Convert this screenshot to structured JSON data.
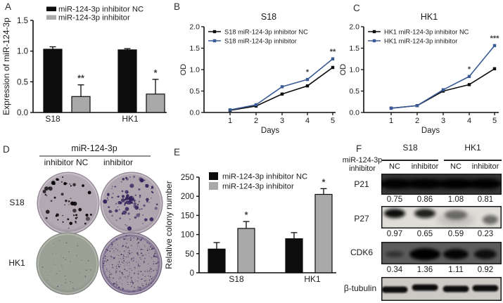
{
  "figure_bg": "#ffffff",
  "palette": {
    "nc_black": "#0d0d0d",
    "inhibitor_gray": "#a9a9a9",
    "inhibitor_blue": "#3a5a96",
    "text": "#1a1a1a",
    "significance": "#3f3f3f"
  },
  "panels": {
    "a": {
      "label": "A"
    },
    "b": {
      "label": "B"
    },
    "c": {
      "label": "C"
    },
    "d": {
      "label": "D",
      "group_title": "miR-124-3p",
      "col_labels": [
        "inhibitor NC",
        "inhibitor"
      ],
      "row_labels": [
        "S18",
        "HK1"
      ],
      "dishes": [
        {
          "id": "s18-nc",
          "bg": "#b3a9b3",
          "rim": "#cbc2ca",
          "edge": "#8d8390",
          "colony_color": "#33235led",
          "colony_color_fix": "#33235e",
          "colony_count": 52,
          "colony_size": "medium",
          "has_center_cluster": false
        },
        {
          "id": "s18-inhibitor",
          "bg": "#b0a6b0",
          "rim": "#c8bfc7",
          "edge": "#8d8390",
          "colony_color": "#30215a",
          "colony_count": 95,
          "colony_size": "medium",
          "has_center_cluster": true
        },
        {
          "id": "hk1-nc",
          "bg": "#9ba194",
          "rim": "#b5b9af",
          "edge": "#828880",
          "colony_color": "#565070",
          "colony_count": 45,
          "colony_size": "tiny",
          "has_center_cluster": false
        },
        {
          "id": "hk1-inhibitor",
          "bg": "#a39ba5",
          "rim": "#b7b0b8",
          "edge": "#6f5f80",
          "colony_color": "#43315f",
          "colony_count": 330,
          "colony_size": "tiny",
          "has_center_cluster": false,
          "purple_rim": true
        }
      ]
    },
    "e": {
      "label": "E"
    },
    "f": {
      "label": "F",
      "row_header_line1": "miR-124-3p",
      "row_header_line2": "inhibitor",
      "group_labels": [
        "S18",
        "HK1"
      ],
      "lane_labels": [
        "NC",
        "inhibitor",
        "NC",
        "inhibitor"
      ],
      "blots": [
        {
          "protein": "P21",
          "values": [
            "0.75",
            "0.86",
            "1.08",
            "0.81"
          ],
          "bg": "#3a3a3a",
          "band_color": "#040404",
          "band_opacity": [
            0.88,
            0.92,
            1,
            0.95
          ],
          "style": "smear"
        },
        {
          "protein": "P27",
          "values": [
            "0.97",
            "0.65",
            "0.59",
            "0.23"
          ],
          "bg": "#dfddd8",
          "band_color": "#0a0a0a",
          "band_opacity": [
            1,
            0.9,
            0.5,
            0.55
          ],
          "style": "spots-top"
        },
        {
          "protein": "CDK6",
          "values": [
            "0.34",
            "1.36",
            "1.11",
            "0.92"
          ],
          "bg": "#5c5c5c",
          "band_color": "#060606",
          "band_opacity": [
            0.45,
            1,
            0.95,
            0.85
          ],
          "style": "spots-mid"
        },
        {
          "protein": "β-tubulin",
          "values": [],
          "bg": "#cdcac5",
          "band_color": "#101010",
          "band_opacity": [
            1,
            1,
            1,
            1
          ],
          "style": "bands"
        }
      ]
    }
  },
  "chart_data": [
    {
      "panel": "A",
      "type": "bar",
      "title": "",
      "xlabel": "",
      "ylabel": "Expression of miR-124-3p",
      "categories": [
        "S18",
        "HK1"
      ],
      "series": [
        {
          "name": "miR-124-3p inhibitor NC",
          "color": "#0d0d0d",
          "values": [
            1.03,
            1.02
          ],
          "errors": [
            0.04,
            0.02
          ]
        },
        {
          "name": "miR-124-3p inhibitor",
          "color": "#a9a9a9",
          "values": [
            0.26,
            0.3
          ],
          "errors": [
            0.19,
            0.24
          ]
        }
      ],
      "significance": [
        {
          "category": "S18",
          "series": 1,
          "label": "**"
        },
        {
          "category": "HK1",
          "series": 1,
          "label": "*"
        }
      ],
      "ylim": [
        0,
        1.5
      ],
      "ytick_values": [
        0,
        0.5,
        1.0,
        1.5
      ],
      "ytick_labels": [
        "0.0",
        "0.5",
        "1.0",
        "1.5"
      ],
      "grid": false,
      "legend_position": "top-left"
    },
    {
      "panel": "B",
      "type": "line",
      "title": "S18",
      "xlabel": "Days",
      "ylabel": "OD",
      "x": [
        1,
        2,
        3,
        4,
        5
      ],
      "series": [
        {
          "name": "S18 miR-124-3p inhibitor NC",
          "color": "#0d0d0d",
          "values": [
            0.05,
            0.15,
            0.43,
            0.62,
            1.05
          ]
        },
        {
          "name": "S18 miR-124-3p inhibitor",
          "color": "#3a5a96",
          "values": [
            0.06,
            0.18,
            0.6,
            0.77,
            1.25
          ]
        }
      ],
      "significance": [
        {
          "x": 4,
          "label": "*"
        },
        {
          "x": 5,
          "label": "**"
        }
      ],
      "ylim": [
        0,
        2.0
      ],
      "ytick_values": [
        0,
        0.5,
        1.0,
        1.5,
        2.0
      ],
      "ytick_labels": [
        "0.0",
        "0.5",
        "1.0",
        "1.5",
        "2.0"
      ],
      "grid": false,
      "legend_position": "inside-top-left"
    },
    {
      "panel": "C",
      "type": "line",
      "title": "HK1",
      "xlabel": "Days",
      "ylabel": "OD",
      "x": [
        1,
        2,
        3,
        4,
        5
      ],
      "series": [
        {
          "name": "HK1 miR-124-3p inhibitor NC",
          "color": "#0d0d0d",
          "values": [
            0.1,
            0.16,
            0.5,
            0.65,
            1.02
          ]
        },
        {
          "name": "HK1 miR-124-3p inhibitor",
          "color": "#3a5a96",
          "values": [
            0.1,
            0.16,
            0.53,
            0.84,
            1.56
          ]
        }
      ],
      "significance": [
        {
          "x": 4,
          "label": "*"
        },
        {
          "x": 5,
          "label": "***"
        }
      ],
      "ylim": [
        0,
        2.0
      ],
      "ytick_values": [
        0,
        0.5,
        1.0,
        1.5,
        2.0
      ],
      "ytick_labels": [
        "0.0",
        "0.5",
        "1.0",
        "1.5",
        "2.0"
      ],
      "grid": false,
      "legend_position": "inside-top-left"
    },
    {
      "panel": "E",
      "type": "bar",
      "title": "",
      "xlabel": "",
      "ylabel": "Relative colony number",
      "categories": [
        "S18",
        "HK1"
      ],
      "series": [
        {
          "name": "miR-124-3p inhibitor NC",
          "color": "#0d0d0d",
          "values": [
            62,
            89
          ],
          "errors": [
            17,
            16
          ]
        },
        {
          "name": "miR-124-3p inhibitor",
          "color": "#a9a9a9",
          "values": [
            116,
            205
          ],
          "errors": [
            18,
            15
          ]
        }
      ],
      "significance": [
        {
          "category": "S18",
          "series": 1,
          "label": "*"
        },
        {
          "category": "HK1",
          "series": 1,
          "label": "*"
        }
      ],
      "ylim": [
        0,
        250
      ],
      "ytick_values": [
        0,
        50,
        100,
        150,
        200,
        250
      ],
      "ytick_labels": [
        "0",
        "50",
        "100",
        "150",
        "200",
        "250"
      ],
      "grid": false,
      "legend_position": "inside-top-left"
    }
  ]
}
